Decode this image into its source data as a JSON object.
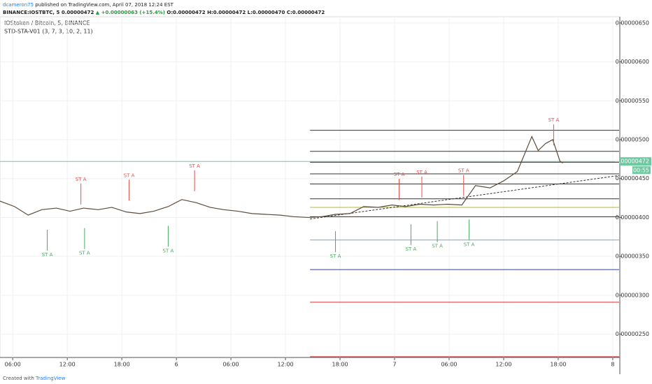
{
  "header": {
    "user": "dcameron75",
    "published": "published on TradingView.com, April 07, 2018 12:24 EST",
    "symbol": "BINANCE:IOSTBTC, 5",
    "last": "0.00000472",
    "change": "▲ +0.00000063 (+15.4%)",
    "o": "O:0.00000472",
    "h": "H:0.00000472",
    "l": "L:0.00000470",
    "c": "C:0.00000472",
    "legend": "IOStoken / Bitcoin, 5, BINANCE",
    "indicator": "STD-STA-V01 (3, 7, 3, 10, 2, 11)",
    "countdown": "00:55"
  },
  "footer": {
    "created": "Created with",
    "brand": "TradingView"
  },
  "chart_data": {
    "type": "line",
    "color": "#5d4a3a",
    "x": [
      4.6,
      6.2,
      7.7,
      9.2,
      10.8,
      12.3,
      13.8,
      15.4,
      16.9,
      18.5,
      20.0,
      21.5,
      23.1,
      24.6,
      26.2,
      27.7,
      29.2,
      30.8,
      32.3,
      33.8,
      35.4,
      36.9,
      38.5,
      40.0,
      41.5,
      43.1,
      44.6,
      46.2,
      47.7,
      49.2,
      50.8,
      52.3,
      53.8,
      55.4,
      56.9,
      58.5,
      60.0,
      61.5,
      63.1,
      63.8,
      64.6,
      65.4,
      66.2,
      66.5
    ],
    "values": [
      4.21e-06,
      4.14e-06,
      4.03e-06,
      4.1e-06,
      4.12e-06,
      4.08e-06,
      4.12e-06,
      4.1e-06,
      4.13e-06,
      4.07e-06,
      4.05e-06,
      4.08e-06,
      4.14e-06,
      4.23e-06,
      4.19e-06,
      4.13e-06,
      4.1e-06,
      4.08e-06,
      4.05e-06,
      4.04e-06,
      4.03e-06,
      4.01e-06,
      4e-06,
      4.01e-06,
      4.04e-06,
      4.05e-06,
      4.14e-06,
      4.13e-06,
      4.16e-06,
      4.14e-06,
      4.17e-06,
      4.16e-06,
      4.17e-06,
      4.16e-06,
      4.41e-06,
      4.38e-06,
      4.47e-06,
      4.59e-06,
      5.04e-06,
      4.86e-06,
      4.95e-06,
      5e-06,
      4.72e-06,
      4.7e-06
    ],
    "xlim": [
      4.6,
      72.7
    ],
    "ylim": [
      2.2e-06,
      6.58e-06
    ],
    "xticks": [
      {
        "value": 6,
        "label": "06:00"
      },
      {
        "value": 12,
        "label": "12:00"
      },
      {
        "value": 18,
        "label": "18:00"
      },
      {
        "value": 24,
        "label": "6"
      },
      {
        "value": 30,
        "label": "06:00"
      },
      {
        "value": 36,
        "label": "12:00"
      },
      {
        "value": 42,
        "label": "18:00"
      },
      {
        "value": 48,
        "label": "7"
      },
      {
        "value": 54,
        "label": "06:00"
      },
      {
        "value": 60,
        "label": "12:00"
      },
      {
        "value": 66,
        "label": "18:00"
      },
      {
        "value": 72,
        "label": "8"
      }
    ],
    "yticks": [
      {
        "value": 2.5e-06,
        "label": "0.00000250"
      },
      {
        "value": 3e-06,
        "label": "0.00000300"
      },
      {
        "value": 3.5e-06,
        "label": "0.00000350"
      },
      {
        "value": 4e-06,
        "label": "0.00000400"
      },
      {
        "value": 4.5e-06,
        "label": "0.00000450"
      },
      {
        "value": 5e-06,
        "label": "0.00000500"
      },
      {
        "value": 5.5e-06,
        "label": "0.00000550"
      },
      {
        "value": 6e-06,
        "label": "0.00000600"
      },
      {
        "value": 6.5e-06,
        "label": "0.00000650"
      }
    ],
    "grid": true,
    "current": {
      "value": 4.72e-06,
      "label": "0.00000472",
      "color": "#6fc8a0"
    },
    "levels_start": 38.7,
    "levels": [
      {
        "value": 5.12e-06,
        "color": "#333"
      },
      {
        "value": 4.85e-06,
        "color": "#333"
      },
      {
        "value": 4.71e-06,
        "color": "#333"
      },
      {
        "value": 4.56e-06,
        "color": "#333"
      },
      {
        "value": 4.43e-06,
        "color": "#333"
      },
      {
        "value": 4.24e-06,
        "color": "#333"
      },
      {
        "value": 4.13e-06,
        "color": "#b5b83a"
      },
      {
        "value": 4.01e-06,
        "color": "#333"
      },
      {
        "value": 3.71e-06,
        "color": "#7f9fd6"
      },
      {
        "value": 3.33e-06,
        "color": "#3340b0"
      },
      {
        "value": 2.91e-06,
        "color": "#d03030"
      },
      {
        "value": 2.21e-06,
        "color": "#d03030"
      }
    ],
    "trend": {
      "x": [
        38.7,
        72.7
      ],
      "values": [
        3.98e-06,
        4.54e-06
      ]
    },
    "annotations": [
      {
        "label": "ST A",
        "x": 13.5,
        "y": 4.49e-06,
        "color": "#e05050"
      },
      {
        "label": "ST A",
        "x": 18.8,
        "y": 4.54e-06,
        "color": "#e05050"
      },
      {
        "label": "ST A",
        "x": 26.0,
        "y": 4.66e-06,
        "color": "#e05050"
      },
      {
        "label": "ST A",
        "x": 48.5,
        "y": 4.55e-06,
        "color": "#e05050"
      },
      {
        "label": "ST A",
        "x": 51.0,
        "y": 4.58e-06,
        "color": "#e05050"
      },
      {
        "label": "ST A",
        "x": 55.6,
        "y": 4.6e-06,
        "color": "#e05050"
      },
      {
        "label": "ST A",
        "x": 65.5,
        "y": 5.25e-06,
        "color": "#e05050"
      },
      {
        "label": "ST A",
        "x": 9.8,
        "y": 3.52e-06,
        "color": "#4aa860"
      },
      {
        "label": "ST A",
        "x": 13.9,
        "y": 3.54e-06,
        "color": "#4aa860"
      },
      {
        "label": "ST A",
        "x": 23.1,
        "y": 3.57e-06,
        "color": "#4aa860"
      },
      {
        "label": "ST A",
        "x": 41.5,
        "y": 3.5e-06,
        "color": "#4aa860"
      },
      {
        "label": "ST A",
        "x": 49.8,
        "y": 3.59e-06,
        "color": "#4aa860"
      },
      {
        "label": "ST A",
        "x": 52.7,
        "y": 3.63e-06,
        "color": "#4aa860"
      },
      {
        "label": "ST A",
        "x": 56.2,
        "y": 3.65e-06,
        "color": "#4aa860"
      }
    ]
  }
}
